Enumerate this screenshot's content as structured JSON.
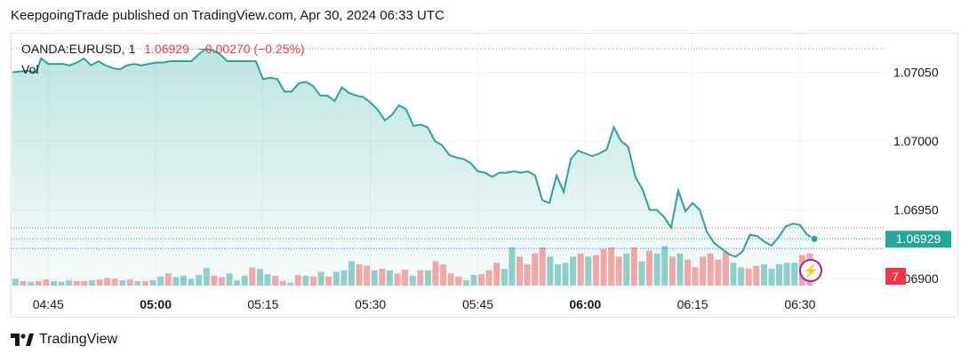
{
  "header": {
    "title": "KeepgoingTrade published on TradingView.com, Apr 30, 2024 06:33 UTC"
  },
  "legend": {
    "symbol": "OANDA:EURUSD, 1",
    "price": "1.06929",
    "change": "−0.00270 (−0.25%)",
    "volume_label": "Vol"
  },
  "brand": {
    "name": "TradingView"
  },
  "colors": {
    "line": "#26a69a",
    "area": "#26a69a",
    "up_volume": "#26a69a",
    "down_volume": "#ef5350",
    "price_badge": "#26a69a",
    "volume_badge": "#f23645"
  },
  "chart_data": {
    "type": "area",
    "x_unit": "minutes since 04:38 UTC",
    "ylim": [
      1.06895,
      1.07078
    ],
    "xlim": [
      0,
      113
    ],
    "y_ticks": [
      {
        "value": 1.0705,
        "label": "1.07050"
      },
      {
        "value": 1.07,
        "label": "1.07000"
      },
      {
        "value": 1.0695,
        "label": "1.06950"
      },
      {
        "value": 1.069,
        "label": "1.06900"
      }
    ],
    "x_ticks": [
      {
        "value": 5,
        "label": "04:45",
        "bold": false
      },
      {
        "value": 20,
        "label": "05:00",
        "bold": true
      },
      {
        "value": 35,
        "label": "05:15",
        "bold": false
      },
      {
        "value": 50,
        "label": "05:30",
        "bold": false
      },
      {
        "value": 65,
        "label": "05:45",
        "bold": false
      },
      {
        "value": 80,
        "label": "06:00",
        "bold": true
      },
      {
        "value": 95,
        "label": "06:15",
        "bold": false
      },
      {
        "value": 110,
        "label": "06:30",
        "bold": false
      }
    ],
    "last_price": {
      "value": 1.06929,
      "label": "1.06929"
    },
    "volume_badge_label": "7",
    "price_series": [
      [
        0,
        1.0705
      ],
      [
        2,
        1.07051
      ],
      [
        3.3,
        1.0705
      ],
      [
        4,
        1.0706
      ],
      [
        5,
        1.07056
      ],
      [
        6,
        1.07056
      ],
      [
        7,
        1.07056
      ],
      [
        8,
        1.07055
      ],
      [
        9,
        1.07057
      ],
      [
        10,
        1.0706
      ],
      [
        11,
        1.07055
      ],
      [
        12,
        1.07058
      ],
      [
        13,
        1.07055
      ],
      [
        14,
        1.07053
      ],
      [
        15,
        1.07052
      ],
      [
        16,
        1.07055
      ],
      [
        17,
        1.07056
      ],
      [
        18,
        1.07055
      ],
      [
        19,
        1.07056
      ],
      [
        20,
        1.07057
      ],
      [
        21,
        1.07057
      ],
      [
        22,
        1.07058
      ],
      [
        23,
        1.07058
      ],
      [
        24,
        1.07058
      ],
      [
        25,
        1.07058
      ],
      [
        26,
        1.07063
      ],
      [
        27,
        1.07067
      ],
      [
        28,
        1.07066
      ],
      [
        29,
        1.07063
      ],
      [
        30,
        1.07058
      ],
      [
        31,
        1.07058
      ],
      [
        32,
        1.07058
      ],
      [
        33,
        1.07058
      ],
      [
        34,
        1.07058
      ],
      [
        35,
        1.07045
      ],
      [
        36,
        1.07046
      ],
      [
        37,
        1.07045
      ],
      [
        38,
        1.07036
      ],
      [
        39,
        1.07036
      ],
      [
        40,
        1.07042
      ],
      [
        41,
        1.07043
      ],
      [
        42,
        1.0704
      ],
      [
        43,
        1.07033
      ],
      [
        44,
        1.07033
      ],
      [
        45,
        1.07029
      ],
      [
        46,
        1.07039
      ],
      [
        47,
        1.07035
      ],
      [
        48,
        1.07033
      ],
      [
        49,
        1.07032
      ],
      [
        50,
        1.07028
      ],
      [
        51,
        1.07023
      ],
      [
        52,
        1.07015
      ],
      [
        53,
        1.07019
      ],
      [
        54,
        1.07026
      ],
      [
        55,
        1.07023
      ],
      [
        56,
        1.07011
      ],
      [
        57,
        1.07012
      ],
      [
        58,
        1.0701
      ],
      [
        59,
        1.07
      ],
      [
        60,
        1.06997
      ],
      [
        61,
        1.0699
      ],
      [
        62,
        1.06988
      ],
      [
        63,
        1.06987
      ],
      [
        64,
        1.06984
      ],
      [
        65,
        1.06978
      ],
      [
        66,
        1.06977
      ],
      [
        67,
        1.06974
      ],
      [
        68,
        1.06977
      ],
      [
        69,
        1.06977
      ],
      [
        70,
        1.06978
      ],
      [
        71,
        1.06977
      ],
      [
        72,
        1.06978
      ],
      [
        73,
        1.06975
      ],
      [
        74,
        1.06957
      ],
      [
        75,
        1.06955
      ],
      [
        76,
        1.06975
      ],
      [
        77,
        1.06963
      ],
      [
        78,
        1.06987
      ],
      [
        79,
        1.06993
      ],
      [
        80,
        1.06991
      ],
      [
        81,
        1.06989
      ],
      [
        82,
        1.06991
      ],
      [
        83,
        1.06994
      ],
      [
        84,
        1.0701
      ],
      [
        85,
        1.07
      ],
      [
        86,
        1.06996
      ],
      [
        87,
        1.06974
      ],
      [
        88,
        1.06965
      ],
      [
        89,
        1.0695
      ],
      [
        90,
        1.0695
      ],
      [
        91,
        1.06945
      ],
      [
        92,
        1.06937
      ],
      [
        93,
        1.06964
      ],
      [
        94,
        1.06949
      ],
      [
        95,
        1.06955
      ],
      [
        96,
        1.0695
      ],
      [
        97,
        1.06934
      ],
      [
        98,
        1.06926
      ],
      [
        99,
        1.06922
      ],
      [
        100,
        1.06918
      ],
      [
        101,
        1.06916
      ],
      [
        102,
        1.0692
      ],
      [
        103,
        1.06932
      ],
      [
        104,
        1.06931
      ],
      [
        105,
        1.06927
      ],
      [
        106,
        1.06924
      ],
      [
        107,
        1.0693
      ],
      [
        108,
        1.06938
      ],
      [
        109,
        1.0694
      ],
      [
        110,
        1.06939
      ],
      [
        111,
        1.06932
      ],
      [
        112,
        1.06929
      ]
    ],
    "volume_series": [
      {
        "v": 0.09,
        "up": true
      },
      {
        "v": 0.06,
        "up": false
      },
      {
        "v": 0.05,
        "up": true
      },
      {
        "v": 0.06,
        "up": false
      },
      {
        "v": 0.08,
        "up": false
      },
      {
        "v": 0.06,
        "up": true
      },
      {
        "v": 0.05,
        "up": true
      },
      {
        "v": 0.07,
        "up": true
      },
      {
        "v": 0.06,
        "up": false
      },
      {
        "v": 0.06,
        "up": false
      },
      {
        "v": 0.07,
        "up": true
      },
      {
        "v": 0.08,
        "up": false
      },
      {
        "v": 0.1,
        "up": false
      },
      {
        "v": 0.09,
        "up": false
      },
      {
        "v": 0.07,
        "up": true
      },
      {
        "v": 0.08,
        "up": false
      },
      {
        "v": 0.06,
        "up": true
      },
      {
        "v": 0.06,
        "up": false
      },
      {
        "v": 0.07,
        "up": true
      },
      {
        "v": 0.12,
        "up": true
      },
      {
        "v": 0.16,
        "up": false
      },
      {
        "v": 0.11,
        "up": true
      },
      {
        "v": 0.13,
        "up": true
      },
      {
        "v": 0.09,
        "up": true
      },
      {
        "v": 0.14,
        "up": true
      },
      {
        "v": 0.23,
        "up": true
      },
      {
        "v": 0.13,
        "up": false
      },
      {
        "v": 0.11,
        "up": false
      },
      {
        "v": 0.16,
        "up": true
      },
      {
        "v": 0.07,
        "up": true
      },
      {
        "v": 0.13,
        "up": true
      },
      {
        "v": 0.24,
        "up": false
      },
      {
        "v": 0.22,
        "up": true
      },
      {
        "v": 0.15,
        "up": true
      },
      {
        "v": 0.13,
        "up": false
      },
      {
        "v": 0.06,
        "up": false
      },
      {
        "v": 0.04,
        "up": true
      },
      {
        "v": 0.14,
        "up": false
      },
      {
        "v": 0.13,
        "up": true
      },
      {
        "v": 0.12,
        "up": false
      },
      {
        "v": 0.18,
        "up": true
      },
      {
        "v": 0.12,
        "up": false
      },
      {
        "v": 0.18,
        "up": true
      },
      {
        "v": 0.2,
        "up": true
      },
      {
        "v": 0.32,
        "up": true
      },
      {
        "v": 0.28,
        "up": false
      },
      {
        "v": 0.26,
        "up": false
      },
      {
        "v": 0.2,
        "up": true
      },
      {
        "v": 0.22,
        "up": false
      },
      {
        "v": 0.2,
        "up": true
      },
      {
        "v": 0.16,
        "up": false
      },
      {
        "v": 0.21,
        "up": false
      },
      {
        "v": 0.13,
        "up": true
      },
      {
        "v": 0.2,
        "up": false
      },
      {
        "v": 0.2,
        "up": true
      },
      {
        "v": 0.32,
        "up": false
      },
      {
        "v": 0.28,
        "up": false
      },
      {
        "v": 0.16,
        "up": false
      },
      {
        "v": 0.12,
        "up": false
      },
      {
        "v": 0.07,
        "up": true
      },
      {
        "v": 0.14,
        "up": true
      },
      {
        "v": 0.15,
        "up": false
      },
      {
        "v": 0.2,
        "up": false
      },
      {
        "v": 0.3,
        "up": false
      },
      {
        "v": 0.22,
        "up": true
      },
      {
        "v": 0.5,
        "up": true
      },
      {
        "v": 0.38,
        "up": false
      },
      {
        "v": 0.28,
        "up": false
      },
      {
        "v": 0.42,
        "up": false
      },
      {
        "v": 0.5,
        "up": false
      },
      {
        "v": 0.38,
        "up": true
      },
      {
        "v": 0.28,
        "up": true
      },
      {
        "v": 0.3,
        "up": true
      },
      {
        "v": 0.38,
        "up": true
      },
      {
        "v": 0.42,
        "up": false
      },
      {
        "v": 0.38,
        "up": true
      },
      {
        "v": 0.4,
        "up": false
      },
      {
        "v": 0.48,
        "up": false
      },
      {
        "v": 0.5,
        "up": false
      },
      {
        "v": 0.38,
        "up": false
      },
      {
        "v": 0.42,
        "up": true
      },
      {
        "v": 0.5,
        "up": false
      },
      {
        "v": 0.32,
        "up": true
      },
      {
        "v": 0.46,
        "up": false
      },
      {
        "v": 0.42,
        "up": true
      },
      {
        "v": 0.52,
        "up": true
      },
      {
        "v": 0.38,
        "up": false
      },
      {
        "v": 0.42,
        "up": true
      },
      {
        "v": 0.34,
        "up": false
      },
      {
        "v": 0.24,
        "up": false
      },
      {
        "v": 0.38,
        "up": false
      },
      {
        "v": 0.42,
        "up": false
      },
      {
        "v": 0.34,
        "up": false
      },
      {
        "v": 0.44,
        "up": false
      },
      {
        "v": 0.3,
        "up": true
      },
      {
        "v": 0.24,
        "up": true
      },
      {
        "v": 0.22,
        "up": false
      },
      {
        "v": 0.26,
        "up": false
      },
      {
        "v": 0.28,
        "up": true
      },
      {
        "v": 0.22,
        "up": true
      },
      {
        "v": 0.28,
        "up": true
      },
      {
        "v": 0.3,
        "up": true
      },
      {
        "v": 0.3,
        "up": true
      },
      {
        "v": 0.4,
        "up": false
      },
      {
        "v": 0.42,
        "up": false
      }
    ]
  }
}
